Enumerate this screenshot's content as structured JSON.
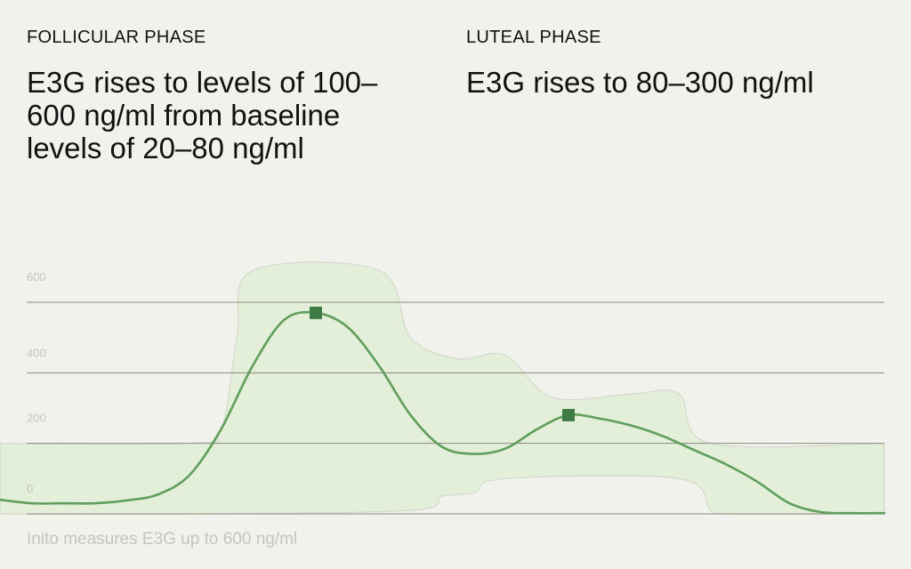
{
  "header": {
    "follicular": {
      "label": "FOLLICULAR PHASE",
      "description": "E3G rises to levels of 100–600 ng/ml from baseline levels of 20–80 ng/ml"
    },
    "luteal": {
      "label": "LUTEAL PHASE",
      "description": "E3G rises to 80–300 ng/ml"
    }
  },
  "footnote": "Inito measures E3G up to 600 ng/ml",
  "colors": {
    "curve": "#5f9e5b",
    "marker": "#3d7a44",
    "band_fill": "#e3efd8",
    "band_stroke": "#d3d8cd",
    "gridline": "#888a84",
    "tick_label": "#c4c6bd"
  },
  "chart_data": {
    "type": "line",
    "title": "",
    "xlabel": "",
    "ylabel": "",
    "ylim": [
      0,
      600
    ],
    "xlim": [
      0,
      28
    ],
    "grid": true,
    "y_ticks": [
      0,
      200,
      400,
      600
    ],
    "x_ticks": [],
    "series": [
      {
        "points": [
          [
            0,
            40
          ],
          [
            1,
            30
          ],
          [
            2,
            30
          ],
          [
            3,
            30
          ],
          [
            4,
            38
          ],
          [
            5,
            55
          ],
          [
            6,
            110
          ],
          [
            7,
            240
          ],
          [
            8,
            420
          ],
          [
            9,
            550
          ],
          [
            10,
            570
          ],
          [
            11,
            530
          ],
          [
            12,
            420
          ],
          [
            13,
            280
          ],
          [
            14,
            190
          ],
          [
            15,
            170
          ],
          [
            16,
            185
          ],
          [
            17,
            240
          ],
          [
            18,
            280
          ],
          [
            19,
            270
          ],
          [
            20,
            250
          ],
          [
            21,
            220
          ],
          [
            22,
            180
          ],
          [
            23,
            140
          ],
          [
            24,
            90
          ],
          [
            25,
            30
          ],
          [
            26,
            5
          ],
          [
            27,
            2
          ],
          [
            28,
            2
          ]
        ]
      }
    ],
    "markers": [
      {
        "x": 10,
        "y": 570
      },
      {
        "x": 18,
        "y": 280
      }
    ],
    "range_band": {
      "upper": [
        [
          0,
          200
        ],
        [
          6,
          200
        ],
        [
          7,
          240
        ],
        [
          7.5,
          500
        ],
        [
          8,
          690
        ],
        [
          12,
          690
        ],
        [
          13,
          500
        ],
        [
          14.5,
          440
        ],
        [
          16,
          450
        ],
        [
          17.5,
          330
        ],
        [
          20,
          340
        ],
        [
          21.5,
          340
        ],
        [
          22.5,
          200
        ],
        [
          28,
          200
        ]
      ],
      "lower": [
        [
          0,
          0
        ],
        [
          6,
          0
        ],
        [
          13,
          10
        ],
        [
          14,
          50
        ],
        [
          15,
          60
        ],
        [
          16,
          100
        ],
        [
          21.5,
          100
        ],
        [
          22.5,
          10
        ],
        [
          23,
          0
        ],
        [
          28,
          0
        ]
      ]
    }
  }
}
